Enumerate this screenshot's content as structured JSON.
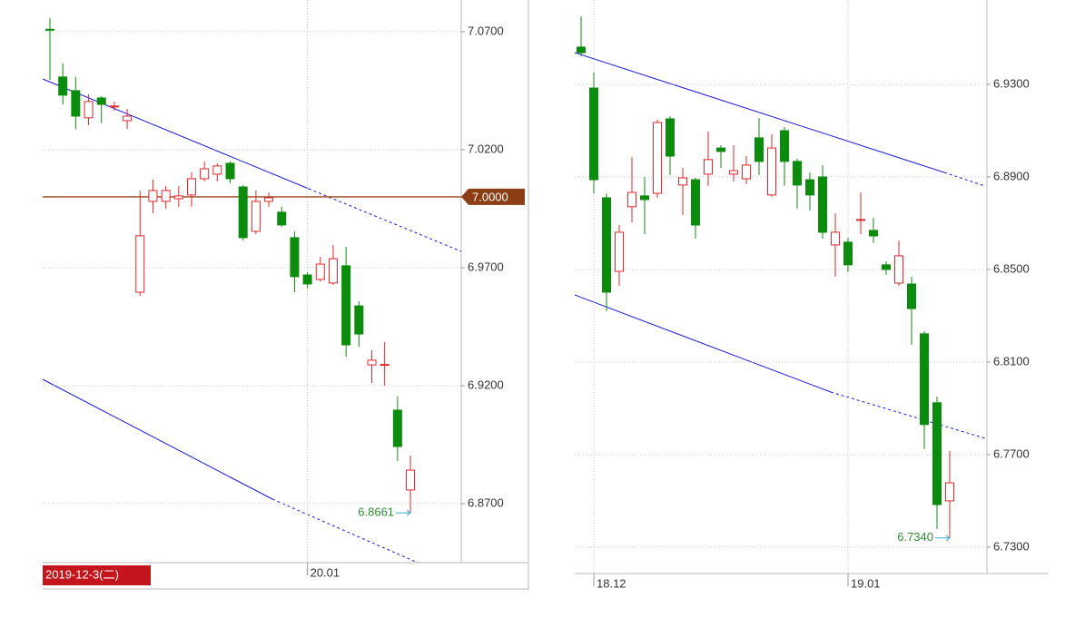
{
  "chart_data": [
    {
      "type": "candlestick",
      "categories": [
        null,
        null,
        null,
        null,
        null,
        null,
        null,
        null,
        null,
        null,
        null,
        null,
        null,
        null,
        null,
        null,
        null,
        null,
        null,
        null,
        "20.01",
        null,
        null,
        null,
        null,
        null,
        null,
        null,
        null
      ],
      "open": [
        7.071,
        7.0508,
        7.045,
        7.0335,
        7.0419,
        7.0381,
        7.0323,
        6.9596,
        6.9981,
        6.9981,
        6.9992,
        7.0008,
        7.0077,
        7.0096,
        7.0142,
        7.0042,
        6.9854,
        6.9981,
        6.9935,
        6.9827,
        6.9669,
        6.965,
        6.9635,
        6.9708,
        6.9538,
        6.9288,
        6.9288,
        6.9096,
        6.8758
      ],
      "high": [
        7.0758,
        7.0565,
        7.0508,
        7.0435,
        7.0427,
        7.0404,
        7.0373,
        7.0027,
        7.0073,
        7.0046,
        7.0046,
        7.0104,
        7.015,
        7.0142,
        7.015,
        7.005,
        7.0027,
        7.0019,
        6.9958,
        6.9854,
        6.9681,
        6.9746,
        6.9796,
        6.9788,
        6.9558,
        6.935,
        6.9385,
        6.9154,
        6.8904
      ],
      "low": [
        7.0496,
        7.0392,
        7.0288,
        7.0304,
        7.0312,
        7.0365,
        7.0288,
        6.9581,
        6.9931,
        6.995,
        6.9958,
        6.9958,
        7.0065,
        7.0065,
        7.0058,
        6.9815,
        6.9842,
        6.9958,
        6.9873,
        6.9596,
        6.9612,
        6.9642,
        6.9627,
        6.9323,
        6.9365,
        6.9212,
        6.92,
        6.8881,
        6.8661
      ],
      "close": [
        7.0708,
        7.0431,
        7.0342,
        7.0404,
        7.0392,
        7.0385,
        7.0342,
        6.9835,
        7.0027,
        7.0027,
        7.0004,
        7.0077,
        7.0119,
        7.0131,
        7.0077,
        6.9827,
        6.9981,
        6.9996,
        6.9881,
        6.9662,
        6.9631,
        6.9715,
        6.9738,
        6.9373,
        6.9419,
        6.9308,
        6.929,
        6.8942,
        6.8842
      ],
      "up_color": "#e3262a",
      "down_color": "#0c8c0c",
      "ylim": [
        6.845,
        7.0815
      ],
      "yticks": [
        {
          "value": 7.07,
          "label": "7.0700"
        },
        {
          "value": 7.02,
          "label": "7.0200"
        },
        {
          "value": 6.97,
          "label": "6.9700"
        },
        {
          "value": 6.92,
          "label": "6.9200"
        },
        {
          "value": 6.87,
          "label": "6.8700"
        }
      ],
      "grid": true,
      "price_line": {
        "value": 7,
        "label": "7.0000"
      },
      "annotation": {
        "value": 6.8661,
        "label": "6.8661"
      },
      "cursor_label": "2019-12-3(二)"
    },
    {
      "type": "candlestick",
      "categories": [
        null,
        "18.12",
        null,
        null,
        null,
        null,
        null,
        null,
        null,
        null,
        null,
        null,
        null,
        null,
        null,
        null,
        null,
        null,
        null,
        null,
        null,
        "19.01",
        null,
        null,
        null,
        null,
        null,
        null,
        null,
        null
      ],
      "open": [
        6.9461,
        6.9284,
        6.881,
        6.8492,
        6.8771,
        6.8818,
        6.8829,
        6.9151,
        6.8865,
        6.8888,
        6.8912,
        6.9025,
        6.8912,
        6.8892,
        6.9069,
        6.8822,
        6.91,
        6.8967,
        6.8888,
        6.89,
        6.8606,
        6.8618,
        6.8714,
        6.8669,
        6.852,
        6.8441,
        6.8437,
        6.8222,
        6.7924,
        6.75
      ],
      "high": [
        6.9594,
        6.9351,
        6.8829,
        6.8692,
        6.8986,
        6.89,
        6.9147,
        6.9163,
        6.8939,
        6.8896,
        6.9096,
        6.9037,
        6.9037,
        6.899,
        6.9155,
        6.9084,
        6.9116,
        6.8978,
        6.892,
        6.8951,
        6.8743,
        6.8637,
        6.8833,
        6.8724,
        6.8535,
        6.8625,
        6.8469,
        6.8233,
        6.7951,
        6.7716
      ],
      "low": [
        6.9422,
        6.8829,
        6.832,
        6.8429,
        6.8704,
        6.8653,
        6.881,
        6.8908,
        6.8735,
        6.8633,
        6.8861,
        6.8939,
        6.888,
        6.8869,
        6.8908,
        6.8814,
        6.8861,
        6.8763,
        6.8755,
        6.8633,
        6.8469,
        6.8488,
        6.8653,
        6.8614,
        6.8476,
        6.8429,
        6.8175,
        6.7724,
        6.7378,
        6.734
      ],
      "close": [
        6.9437,
        6.8888,
        6.8402,
        6.8661,
        6.8833,
        6.8802,
        6.9135,
        6.899,
        6.8896,
        6.8692,
        6.8975,
        6.901,
        6.8927,
        6.8951,
        6.8967,
        6.9025,
        6.8967,
        6.8865,
        6.8822,
        6.8661,
        6.8661,
        6.852,
        6.8716,
        6.8645,
        6.85,
        6.8559,
        6.8331,
        6.783,
        6.7484,
        6.7578
      ],
      "up_color": "#e3262a",
      "down_color": "#0c8c0c",
      "ylim": [
        6.7186,
        6.9645
      ],
      "yticks": [
        {
          "value": 6.93,
          "label": "6.9300"
        },
        {
          "value": 6.89,
          "label": "6.8900"
        },
        {
          "value": 6.85,
          "label": "6.8500"
        },
        {
          "value": 6.81,
          "label": "6.8100"
        },
        {
          "value": 6.77,
          "label": "6.7700"
        },
        {
          "value": 6.73,
          "label": "6.7300"
        }
      ],
      "grid": true,
      "annotation": {
        "value": 6.734,
        "label": "6.7340"
      }
    }
  ]
}
